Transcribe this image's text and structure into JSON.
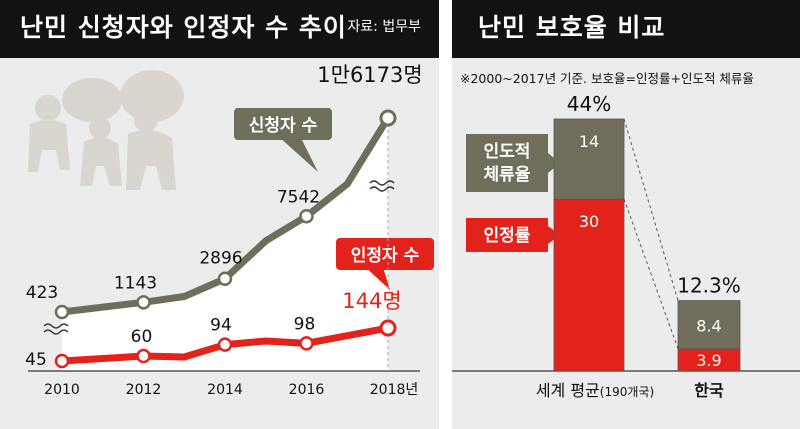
{
  "source": "자료: 법무부",
  "chart_data": [
    {
      "type": "line",
      "title": "난민 신청자와 인정자 수 추이",
      "x_tick_labels": [
        "2010",
        "2012",
        "2014",
        "2016",
        "2018년"
      ],
      "x": [
        2010,
        2012,
        2013,
        2014,
        2015,
        2016,
        2017,
        2018
      ],
      "xlim": [
        2010,
        2018
      ],
      "ylim": [
        0,
        17000
      ],
      "series": [
        {
          "name": "신청자 수",
          "color": "#6f6e5a",
          "values": [
            423,
            1143,
            1574,
            2896,
            5711,
            7542,
            9942,
            16173
          ],
          "point_labels": [
            {
              "x": 2010,
              "text": "423"
            },
            {
              "x": 2012,
              "text": "1143"
            },
            {
              "x": 2014,
              "text": "2896"
            },
            {
              "x": 2016,
              "text": "7542"
            },
            {
              "x": 2018,
              "text": "1만6173명"
            }
          ]
        },
        {
          "name": "인정자 수",
          "color": "#e3231b",
          "values": [
            45,
            60,
            57,
            94,
            105,
            98,
            121,
            144
          ],
          "point_labels": [
            {
              "x": 2010,
              "text": "45"
            },
            {
              "x": 2012,
              "text": "60"
            },
            {
              "x": 2014,
              "text": "94"
            },
            {
              "x": 2016,
              "text": "98"
            },
            {
              "x": 2018,
              "text": "144명"
            }
          ]
        }
      ]
    },
    {
      "type": "bar",
      "stacked": true,
      "title": "난민 보호율 비교",
      "note": "※2000~2017년 기준. 보호율=인정률+인도적 체류율",
      "categories": [
        "세계 평균",
        "한국"
      ],
      "category_suffix": [
        "(190개국)",
        ""
      ],
      "totals": [
        "44%",
        "12.3%"
      ],
      "ylim": [
        0,
        44
      ],
      "series": [
        {
          "name": "인정률",
          "color": "#e3231b",
          "values": [
            30,
            3.9
          ],
          "labels": [
            "30",
            "3.9"
          ]
        },
        {
          "name": "인도적 체류율",
          "display_lines": [
            "인도적",
            "체류율"
          ],
          "color": "#6f6e5a",
          "values": [
            14,
            8.4
          ],
          "labels": [
            "14",
            "8.4"
          ]
        }
      ]
    }
  ]
}
